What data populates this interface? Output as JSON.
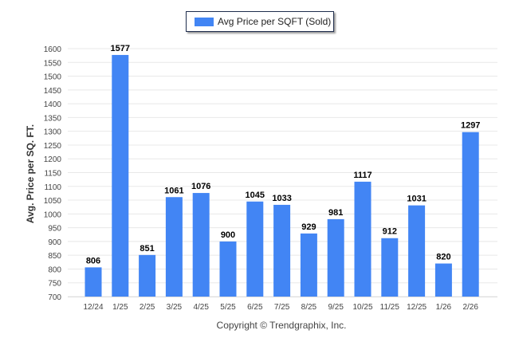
{
  "chart_data": {
    "type": "bar",
    "title": "",
    "legend": [
      "Avg Price per SQFT (Sold)"
    ],
    "legend_position": "top-center",
    "xlabel": "",
    "ylabel": "Avg. Price per SQ. FT.",
    "ylim": [
      700,
      1600
    ],
    "ytick_step": 50,
    "grid": true,
    "categories": [
      "12/24",
      "1/25",
      "2/25",
      "3/25",
      "4/25",
      "5/25",
      "6/25",
      "7/25",
      "8/25",
      "9/25",
      "10/25",
      "11/25",
      "12/25",
      "1/26",
      "2/26"
    ],
    "series": [
      {
        "name": "Avg Price per SQFT (Sold)",
        "color": "#4285f4",
        "values": [
          806,
          1577,
          851,
          1061,
          1076,
          900,
          1045,
          1033,
          929,
          981,
          1117,
          912,
          1031,
          820,
          1297
        ]
      }
    ],
    "footer": "Copyright © Trendgraphix, Inc."
  }
}
